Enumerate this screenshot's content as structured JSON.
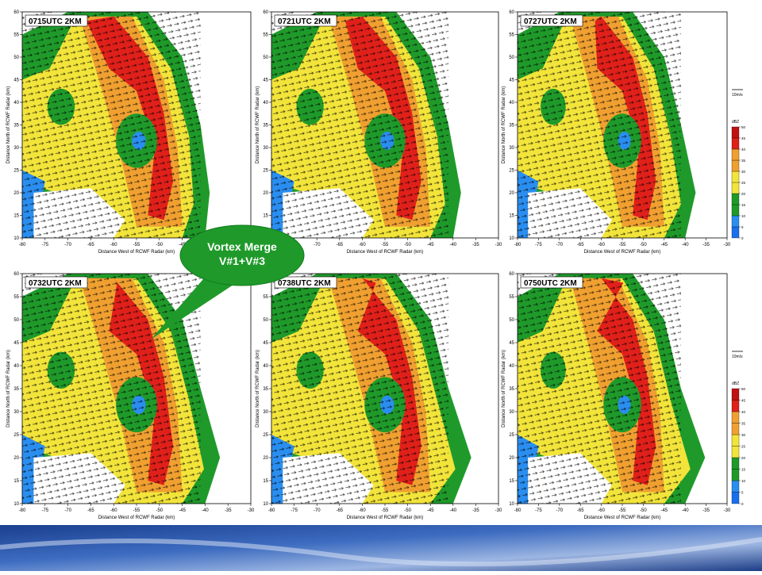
{
  "panels": [
    {
      "label": "0715UTC 2KM"
    },
    {
      "label": "0721UTC 2KM"
    },
    {
      "label": "0727UTC 2KM"
    },
    {
      "label": "0732UTC 2KM"
    },
    {
      "label": "0738UTC 2KM"
    },
    {
      "label": "0750UTC 2KM"
    }
  ],
  "axis": {
    "x_label": "Distance West of RCWF Radar (km)",
    "y_label": "Distance North of RCWF Radar (km)",
    "xticks": [
      -80,
      -75,
      -70,
      -65,
      -60,
      -55,
      -50,
      -45,
      -40,
      -35,
      -30
    ],
    "yticks": [
      10,
      15,
      20,
      25,
      30,
      35,
      40,
      45,
      50,
      55,
      60
    ]
  },
  "legend": {
    "vector_scale": "10m/s",
    "title": "dBZ",
    "ticks": [
      0,
      5,
      10,
      15,
      20,
      25,
      30,
      35,
      40,
      45,
      50
    ]
  },
  "callout": {
    "lines": [
      "Vortex Merge",
      "V#1+V#3"
    ]
  }
}
